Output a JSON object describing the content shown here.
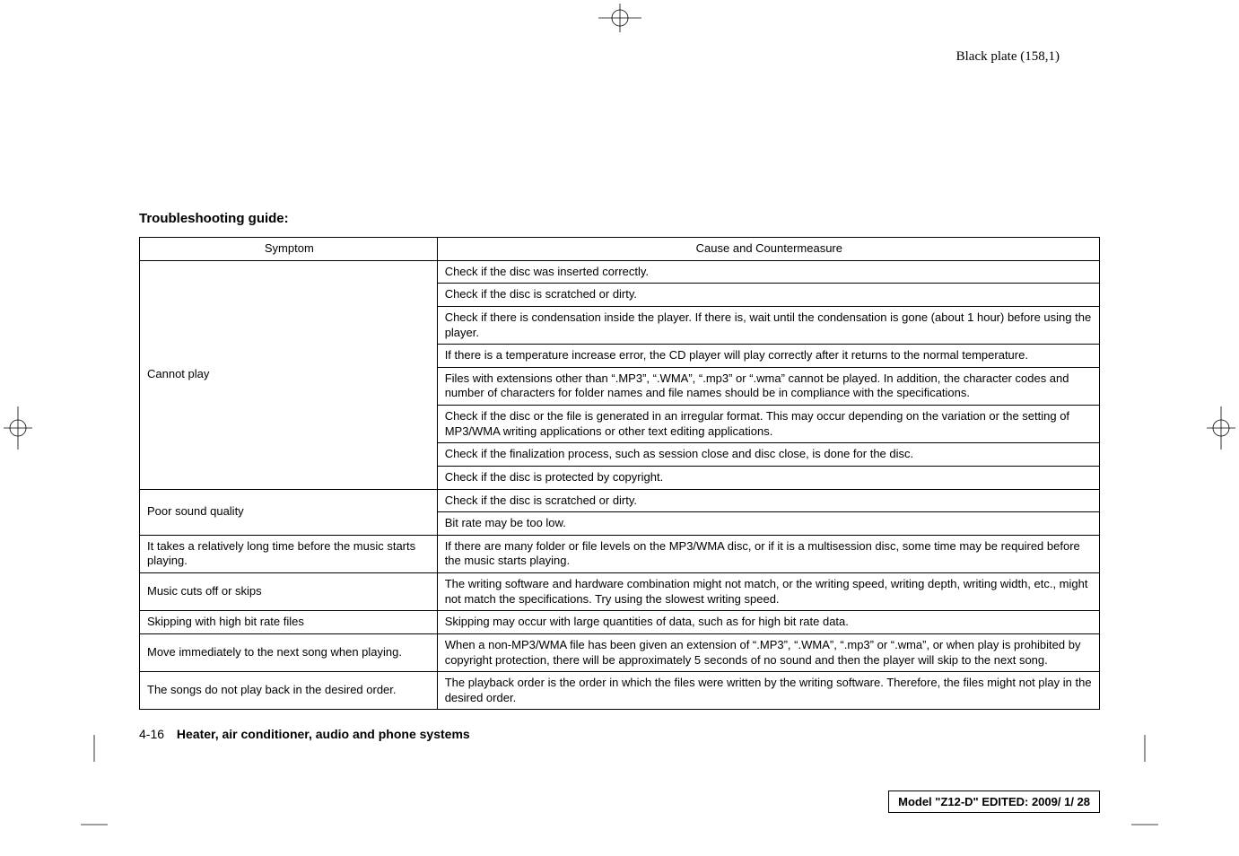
{
  "crop_marks": {
    "stroke": "#000000",
    "stroke_width": 0.8,
    "circle_r": 9,
    "bar_len": 22
  },
  "plate_label": "Black plate (158,1)",
  "heading": "Troubleshooting guide:",
  "table": {
    "headers": [
      "Symptom",
      "Cause and Countermeasure"
    ],
    "groups": [
      {
        "symptom": "Cannot play",
        "causes": [
          "Check if the disc was inserted correctly.",
          "Check if the disc is scratched or dirty.",
          "Check if there is condensation inside the player. If there is, wait until the condensation is gone (about 1 hour) before using the player.",
          "If there is a temperature increase error, the CD player will play correctly after it returns to the normal temperature.",
          "Files with extensions other than “.MP3”, “.WMA”, “.mp3” or “.wma” cannot be played. In addition, the character codes and number of characters for folder names and file names should be in compliance with the specifications.",
          "Check if the disc or the file is generated in an irregular format. This may occur depending on the variation or the setting of MP3/WMA writing applications or other text editing applications.",
          "Check if the finalization process, such as session close and disc close, is done for the disc.",
          "Check if the disc is protected by copyright."
        ]
      },
      {
        "symptom": "Poor sound quality",
        "causes": [
          "Check if the disc is scratched or dirty.",
          "Bit rate may be too low."
        ]
      },
      {
        "symptom": "It takes a relatively long time before the music starts playing.",
        "causes": [
          "If there are many folder or file levels on the MP3/WMA disc, or if it is a multisession disc, some time may be required before the music starts playing."
        ]
      },
      {
        "symptom": "Music cuts off or skips",
        "causes": [
          "The writing software and hardware combination might not match, or the writing speed, writing depth, writing width, etc., might not match the specifications. Try using the slowest writing speed."
        ]
      },
      {
        "symptom": "Skipping with high bit rate files",
        "causes": [
          "Skipping may occur with large quantities of data, such as for high bit rate data."
        ]
      },
      {
        "symptom": "Move immediately to the next song when playing.",
        "causes": [
          "When a non-MP3/WMA file has been given an extension of “.MP3”, “.WMA”, “.mp3” or “.wma”, or when play is prohibited by copyright protection, there will be approximately 5 seconds of no sound and then the player will skip to the next song."
        ]
      },
      {
        "symptom": "The songs do not play back in the desired order.",
        "causes": [
          "The playback order is the order in which the files were written by the writing software. Therefore, the files might not play in the desired order."
        ]
      }
    ]
  },
  "footer": {
    "page_num": "4-16",
    "section": "Heater, air conditioner, audio and phone systems"
  },
  "model_box": "Model \"Z12-D\"  EDITED:  2009/ 1/ 28"
}
